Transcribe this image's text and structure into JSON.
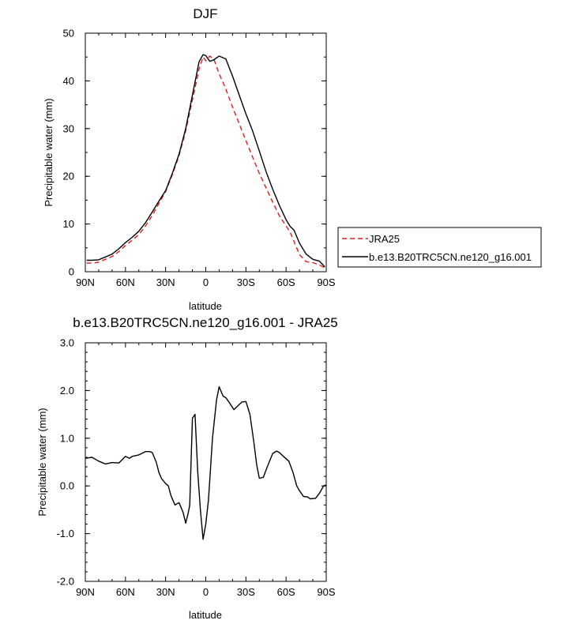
{
  "chart_data": [
    {
      "type": "line",
      "title": "DJF",
      "xlabel": "latitude",
      "ylabel": "Precipitable water (mm)",
      "xlim": [
        90,
        -90
      ],
      "ylim": [
        0,
        50
      ],
      "x_ticks": [
        90,
        60,
        30,
        0,
        -30,
        -60,
        -90
      ],
      "x_tick_labels": [
        "90N",
        "60N",
        "30N",
        "0",
        "30S",
        "60S",
        "90S"
      ],
      "y_ticks": [
        0,
        10,
        20,
        30,
        40,
        50
      ],
      "y_tick_labels": [
        "0",
        "10",
        "20",
        "30",
        "40",
        "50"
      ],
      "legend_position": "right",
      "grid": false,
      "series": [
        {
          "name": "JRA25",
          "color": "#e41a1c",
          "dash": "dashed",
          "x": [
            89,
            85,
            80,
            75,
            70,
            65,
            60,
            55,
            50,
            45,
            40,
            35,
            30,
            25,
            20,
            15,
            10,
            5,
            2,
            0,
            -3,
            -6,
            -10,
            -15,
            -20,
            -25,
            -30,
            -35,
            -40,
            -45,
            -50,
            -55,
            -60,
            -63,
            -66,
            -70,
            -75,
            -80,
            -85,
            -89
          ],
          "y": [
            1.8,
            1.8,
            2.0,
            2.6,
            3.2,
            4.2,
            5.5,
            6.6,
            7.8,
            9.6,
            11.8,
            14.3,
            16.8,
            20.3,
            24.3,
            29.5,
            36.0,
            42.5,
            45.0,
            44.2,
            45.2,
            44.6,
            41.5,
            38.3,
            34.5,
            31.0,
            27.5,
            24.0,
            20.6,
            17.6,
            14.6,
            11.7,
            9.6,
            8.3,
            6.3,
            3.6,
            2.1,
            1.9,
            1.4,
            0.8
          ]
        },
        {
          "name": "b.e13.B20TRC5CN.ne120_g16.001",
          "color": "#000000",
          "dash": "solid",
          "x": [
            89,
            85,
            80,
            75,
            70,
            65,
            60,
            55,
            50,
            45,
            40,
            35,
            30,
            25,
            20,
            15,
            10,
            5,
            2,
            0,
            -3,
            -6,
            -10,
            -15,
            -20,
            -25,
            -30,
            -35,
            -40,
            -45,
            -50,
            -55,
            -60,
            -63,
            -66,
            -70,
            -75,
            -80,
            -85,
            -89
          ],
          "y": [
            2.4,
            2.4,
            2.5,
            3.1,
            3.7,
            4.8,
            6.1,
            7.2,
            8.5,
            10.3,
            12.5,
            14.8,
            17.0,
            20.6,
            24.6,
            30.0,
            37.0,
            44.0,
            45.5,
            45.3,
            44.1,
            44.4,
            45.2,
            44.6,
            41.0,
            37.0,
            33.1,
            29.5,
            25.3,
            21.0,
            17.3,
            13.9,
            10.9,
            9.5,
            8.7,
            6.0,
            3.7,
            2.6,
            2.2,
            1.0
          ]
        }
      ]
    },
    {
      "type": "line",
      "title": "b.e13.B20TRC5CN.ne120_g16.001 - JRA25",
      "xlabel": "latitude",
      "ylabel": "Precipitable water (mm)",
      "xlim": [
        90,
        -90
      ],
      "ylim": [
        -2.0,
        3.0
      ],
      "x_ticks": [
        90,
        60,
        30,
        0,
        -30,
        -60,
        -90
      ],
      "x_tick_labels": [
        "90N",
        "60N",
        "30N",
        "0",
        "30S",
        "60S",
        "90S"
      ],
      "y_ticks": [
        -2.0,
        -1.0,
        0.0,
        1.0,
        2.0,
        3.0
      ],
      "y_tick_labels": [
        "-2.0",
        "-1.0",
        "0.0",
        "1.0",
        "2.0",
        "3.0"
      ],
      "grid": false,
      "series": [
        {
          "color": "#000000",
          "dash": "solid",
          "x": [
            90,
            85,
            80,
            75,
            70,
            65,
            60,
            57,
            55,
            50,
            45,
            42,
            40,
            37,
            35,
            33,
            30,
            28,
            26,
            23,
            20,
            17,
            15,
            13,
            12,
            10,
            8,
            6,
            4,
            2,
            0,
            -2,
            -5,
            -8,
            -10,
            -13,
            -15,
            -18,
            -21,
            -24,
            -27,
            -30,
            -33,
            -36,
            -38,
            -40,
            -43,
            -46,
            -50,
            -53,
            -55,
            -58,
            -62,
            -65,
            -68,
            -70,
            -73,
            -76,
            -78,
            -82,
            -85,
            -88,
            -90
          ],
          "y": [
            0.58,
            0.6,
            0.52,
            0.46,
            0.49,
            0.48,
            0.62,
            0.58,
            0.62,
            0.65,
            0.72,
            0.72,
            0.7,
            0.5,
            0.28,
            0.15,
            0.05,
            0.0,
            -0.2,
            -0.4,
            -0.35,
            -0.55,
            -0.78,
            -0.55,
            -0.4,
            1.42,
            1.5,
            0.3,
            -0.5,
            -1.12,
            -0.8,
            -0.3,
            1.0,
            1.8,
            2.08,
            1.88,
            1.85,
            1.73,
            1.6,
            1.68,
            1.76,
            1.77,
            1.5,
            0.9,
            0.45,
            0.16,
            0.18,
            0.4,
            0.68,
            0.73,
            0.7,
            0.62,
            0.52,
            0.3,
            0.0,
            -0.1,
            -0.22,
            -0.23,
            -0.27,
            -0.26,
            -0.15,
            0.0,
            0.02
          ]
        }
      ]
    }
  ]
}
